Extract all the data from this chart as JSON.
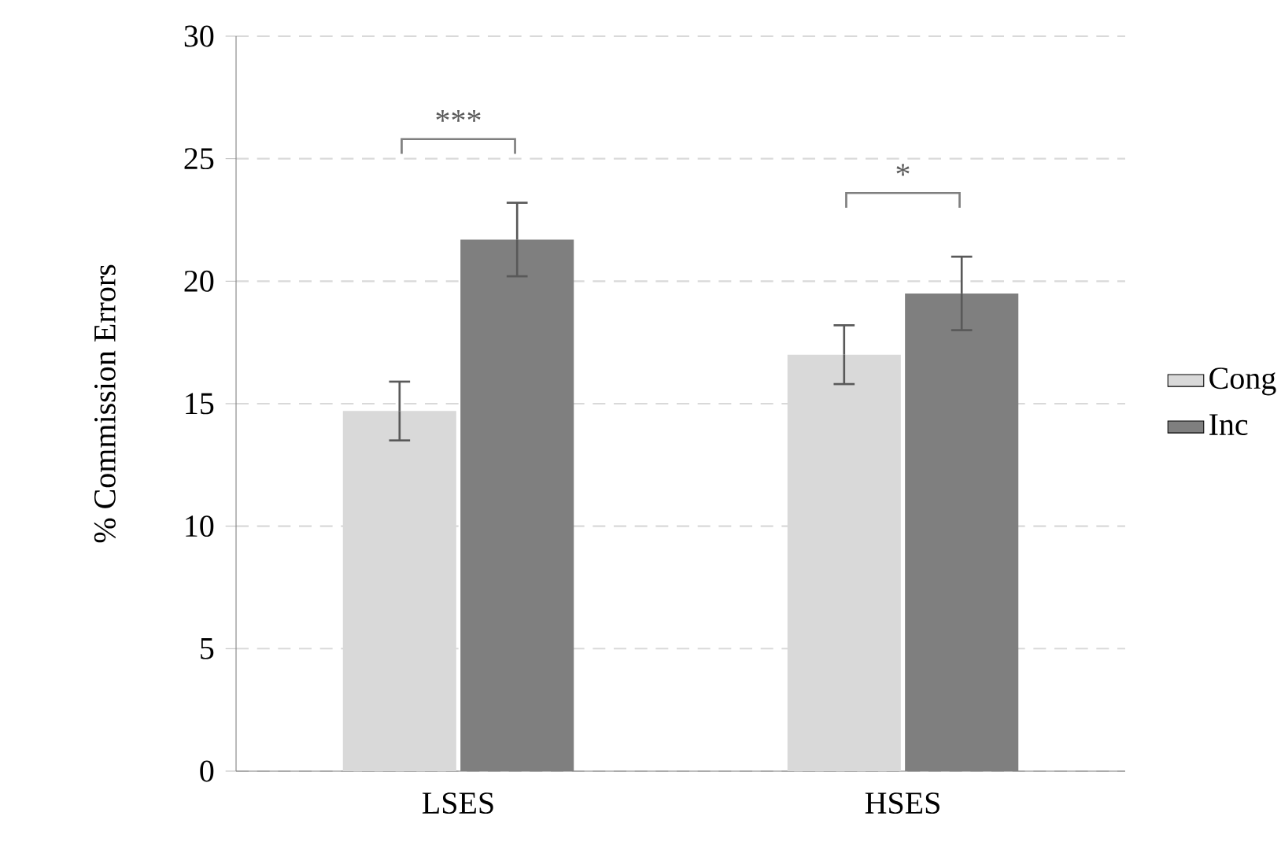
{
  "chart_data": {
    "type": "bar",
    "ylabel": "% Commission Errors",
    "categories": [
      "LSES",
      "HSES"
    ],
    "series": [
      {
        "name": "Cong",
        "color": "#d9d9d9",
        "values": [
          14.7,
          17.0
        ],
        "errors": [
          1.2,
          1.2
        ]
      },
      {
        "name": "Inc",
        "color": "#7f7f7f",
        "values": [
          21.7,
          19.5
        ],
        "errors": [
          1.5,
          1.5
        ]
      }
    ],
    "ylim": [
      0,
      30
    ],
    "yticks": [
      0,
      5,
      10,
      15,
      20,
      25,
      30
    ],
    "grid": "y",
    "legend": "right",
    "annotations": [
      "***",
      "*"
    ]
  }
}
